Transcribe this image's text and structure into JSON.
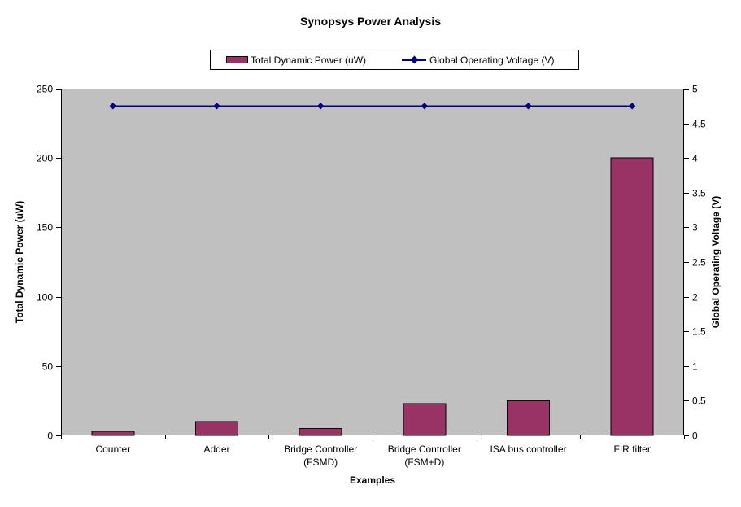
{
  "title": "Synopsys Power Analysis",
  "legend": [
    {
      "label": "Total Dynamic Power (uW)",
      "marker": "bar-swatch-icon",
      "color": "#993366"
    },
    {
      "label": "Global Operating Voltage (V)",
      "marker": "line-diamond-icon",
      "color": "#000080"
    }
  ],
  "colors": {
    "bar_fill": "#993366",
    "bar_border": "#000000",
    "line": "#000080",
    "plot_background": "#C0C0C0",
    "axis": "#000000",
    "text": "#000000"
  },
  "chart_data": {
    "type": "bar",
    "combo": "bar+line",
    "title": "Synopsys Power Analysis",
    "xlabel": "Examples",
    "categories": [
      "Counter",
      "Adder",
      "Bridge Controller (FSMD)",
      "Bridge Controller (FSM+D)",
      "ISA bus controller",
      "FIR filter"
    ],
    "category_label_lines": [
      [
        "Counter"
      ],
      [
        "Adder"
      ],
      [
        "Bridge Controller",
        "(FSMD)"
      ],
      [
        "Bridge Controller",
        "(FSM+D)"
      ],
      [
        "ISA bus controller"
      ],
      [
        "FIR filter"
      ]
    ],
    "series": [
      {
        "name": "Total Dynamic Power (uW)",
        "type": "bar",
        "axis": "left",
        "color": "#993366",
        "values": [
          3,
          10,
          5,
          23,
          25,
          200
        ]
      },
      {
        "name": "Global Operating Voltage (V)",
        "type": "line",
        "axis": "right",
        "color": "#000080",
        "marker": "diamond",
        "values": [
          4.75,
          4.75,
          4.75,
          4.75,
          4.75,
          4.75
        ]
      }
    ],
    "left_axis": {
      "label": "Total Dynamic Power (uW)",
      "min": 0,
      "max": 250,
      "step": 50,
      "ticks": [
        0,
        50,
        100,
        150,
        200,
        250
      ]
    },
    "right_axis": {
      "label": "Global Operating Voltage (V)",
      "min": 0,
      "max": 5,
      "step": 0.5,
      "ticks": [
        0,
        0.5,
        1,
        1.5,
        2,
        2.5,
        3,
        3.5,
        4,
        4.5,
        5
      ]
    },
    "grid": false,
    "legend_position": "top",
    "plot_background": "#C0C0C0"
  }
}
